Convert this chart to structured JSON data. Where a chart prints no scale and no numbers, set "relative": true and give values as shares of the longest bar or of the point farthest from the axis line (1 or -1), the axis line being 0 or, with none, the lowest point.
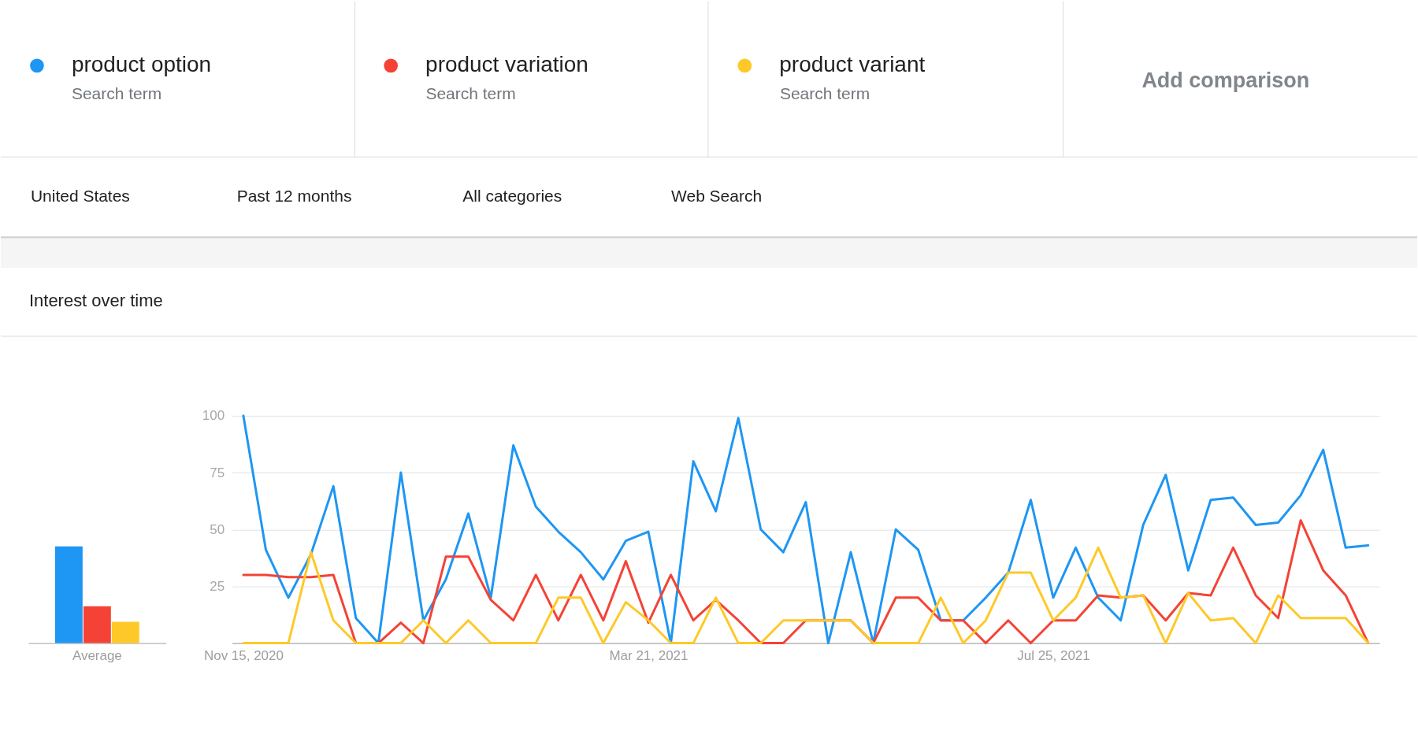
{
  "chart_data": [
    {
      "type": "other",
      "annotations": [
        "Search term",
        "Search term",
        "Search term",
        "Add comparison",
        "United States",
        "Past 12 months",
        "All categories",
        "Web Search"
      ]
    },
    {
      "type": "bar",
      "categories": [
        "Average"
      ],
      "relative": true,
      "series": [
        {
          "color": "#1e96f3",
          "values": [
            1
          ]
        },
        {
          "color": "#f44336",
          "values": [
            0.38
          ]
        },
        {
          "color": "#fec928",
          "values": [
            0.22
          ]
        }
      ]
    },
    {
      "type": "line",
      "title": "Interest over time",
      "legend": "top",
      "grid": "y",
      "x": [
        "2020-11-15",
        "2020-11-22",
        "2020-11-29",
        "2020-12-06",
        "2020-12-13",
        "2020-12-20",
        "2020-12-27",
        "2021-01-03",
        "2021-01-10",
        "2021-01-17",
        "2021-01-24",
        "2021-01-31",
        "2021-02-07",
        "2021-02-14",
        "2021-02-21",
        "2021-02-28",
        "2021-03-07",
        "2021-03-14",
        "2021-03-21",
        "2021-03-28",
        "2021-04-04",
        "2021-04-11",
        "2021-04-18",
        "2021-04-25",
        "2021-05-02",
        "2021-05-09",
        "2021-05-16",
        "2021-05-23",
        "2021-05-30",
        "2021-06-06",
        "2021-06-13",
        "2021-06-20",
        "2021-06-27",
        "2021-07-04",
        "2021-07-11",
        "2021-07-18",
        "2021-07-25",
        "2021-08-01",
        "2021-08-08",
        "2021-08-15",
        "2021-08-22",
        "2021-08-29",
        "2021-09-05",
        "2021-09-12",
        "2021-09-19",
        "2021-09-26",
        "2021-10-03",
        "2021-10-10",
        "2021-10-17",
        "2021-10-24",
        "2021-10-31"
      ],
      "xlim": [
        "2020-11-11T12:00",
        "2021-11-03T12:00"
      ],
      "xticks": [
        {
          "value": "2020-11-15",
          "label": "Nov 15, 2020"
        },
        {
          "value": "2021-03-21",
          "label": "Mar 21, 2021"
        },
        {
          "value": "2021-07-25",
          "label": "Jul 25, 2021"
        }
      ],
      "ylim": [
        0,
        100
      ],
      "yticks": [
        {
          "value": 0,
          "label": null
        },
        25,
        50,
        75,
        100
      ],
      "series": [
        {
          "name": "product option",
          "color": "#1e96f3",
          "values": [
            100,
            41,
            20,
            39,
            69,
            11,
            0,
            75,
            10,
            28,
            57,
            20,
            87,
            60,
            49,
            40,
            28,
            45,
            49,
            0,
            80,
            58,
            99,
            50,
            40,
            62,
            0,
            40,
            0,
            50,
            41,
            10,
            10,
            20,
            31,
            63,
            20,
            42,
            20,
            10,
            52,
            74,
            32,
            63,
            64,
            52,
            53,
            65,
            85,
            42,
            43
          ]
        },
        {
          "name": "product variation",
          "color": "#f44336",
          "values": [
            30,
            30,
            29,
            29,
            30,
            0,
            0,
            9,
            0,
            38,
            38,
            19,
            10,
            30,
            10,
            30,
            10,
            36,
            9,
            30,
            10,
            19,
            10,
            0,
            0,
            10,
            10,
            10,
            0,
            20,
            20,
            10,
            10,
            0,
            10,
            0,
            10,
            10,
            21,
            20,
            21,
            10,
            22,
            21,
            42,
            21,
            11,
            54,
            32,
            21,
            0
          ]
        },
        {
          "name": "product variant",
          "color": "#fec928",
          "values": [
            0,
            0,
            0,
            40,
            10,
            0,
            0,
            0,
            10,
            0,
            10,
            0,
            0,
            0,
            20,
            20,
            0,
            18,
            10,
            0,
            0,
            20,
            0,
            0,
            10,
            10,
            10,
            10,
            0,
            0,
            0,
            20,
            0,
            10,
            31,
            31,
            10,
            20,
            42,
            20,
            21,
            0,
            22,
            10,
            11,
            0,
            21,
            11,
            11,
            11,
            0
          ]
        }
      ]
    }
  ]
}
